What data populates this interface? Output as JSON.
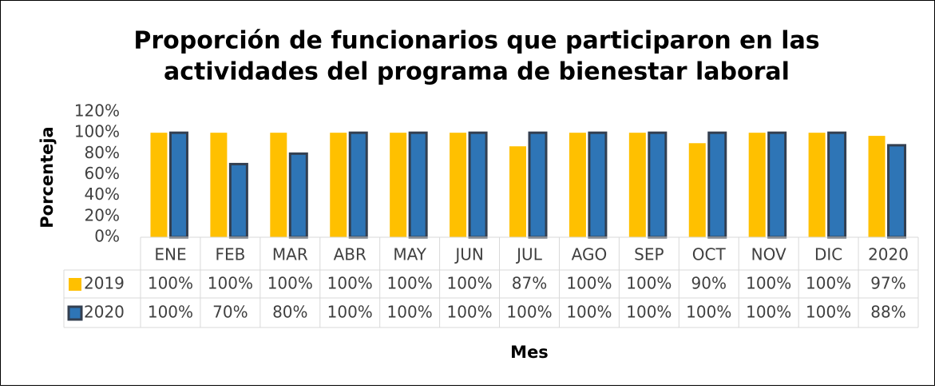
{
  "chart_data": {
    "type": "bar",
    "title": [
      "Proporción de funcionarios que participaron en las",
      "actividades del programa de bienestar laboral"
    ],
    "x_label": "Mes",
    "y_label": "Porcenteja",
    "categories": [
      "ENE",
      "FEB",
      "MAR",
      "ABR",
      "MAY",
      "JUN",
      "JUL",
      "AGO",
      "SEP",
      "OCT",
      "NOV",
      "DIC",
      "2020"
    ],
    "series": [
      {
        "name": "2019",
        "color": "#FFC000",
        "values": [
          100,
          100,
          100,
          100,
          100,
          100,
          87,
          100,
          100,
          90,
          100,
          100,
          97
        ],
        "value_labels": [
          "100%",
          "100%",
          "100%",
          "100%",
          "100%",
          "100%",
          "87%",
          "100%",
          "100%",
          "90%",
          "100%",
          "100%",
          "97%"
        ]
      },
      {
        "name": "2020",
        "color": "#2E75B6",
        "values": [
          100,
          70,
          80,
          100,
          100,
          100,
          100,
          100,
          100,
          100,
          100,
          100,
          88
        ],
        "value_labels": [
          "100%",
          "70%",
          "80%",
          "100%",
          "100%",
          "100%",
          "100%",
          "100%",
          "100%",
          "100%",
          "100%",
          "100%",
          "88%"
        ]
      }
    ],
    "ylim": [
      0,
      120
    ],
    "yticks": [
      {
        "value": 0,
        "label": "0%"
      },
      {
        "value": 20,
        "label": "20%"
      },
      {
        "value": 40,
        "label": "40%"
      },
      {
        "value": 60,
        "label": "60%"
      },
      {
        "value": 80,
        "label": "80%"
      },
      {
        "value": 100,
        "label": "100%"
      },
      {
        "value": 120,
        "label": "120%"
      }
    ]
  }
}
